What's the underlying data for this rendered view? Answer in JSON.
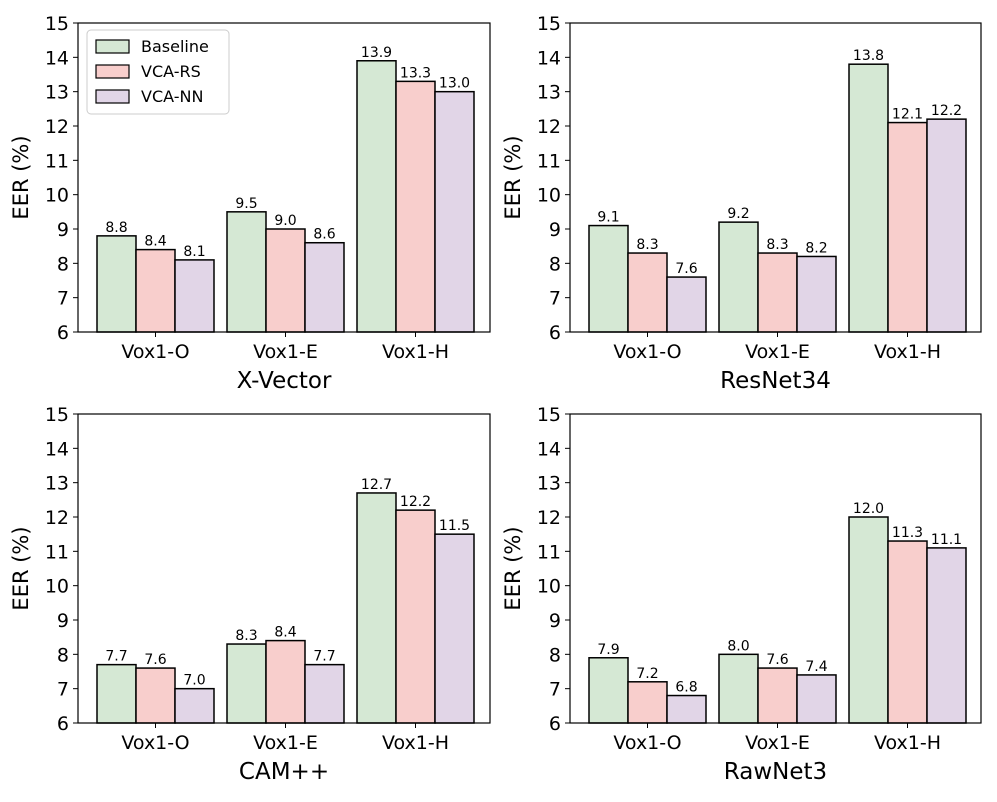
{
  "colors": {
    "Baseline": "#d5e8d4",
    "VCA-RS": "#f8cecc",
    "VCA-NN": "#e1d5e7",
    "edge": "#000000"
  },
  "chart_data": [
    {
      "type": "bar",
      "xlabel": "X-Vector",
      "ylabel": "EER (%)",
      "ylim": [
        6,
        15
      ],
      "yticks": [
        "6",
        "7",
        "8",
        "9",
        "10",
        "11",
        "12",
        "13",
        "14",
        "15"
      ],
      "categories": [
        "Vox1-O",
        "Vox1-E",
        "Vox1-H"
      ],
      "legend": {
        "show": true,
        "placement": "top-left"
      },
      "series": [
        {
          "name": "Baseline",
          "values": [
            8.8,
            9.5,
            13.9
          ],
          "labels": [
            "8.8",
            "9.5",
            "13.9"
          ]
        },
        {
          "name": "VCA-RS",
          "values": [
            8.4,
            9.0,
            13.3
          ],
          "labels": [
            "8.4",
            "9.0",
            "13.3"
          ]
        },
        {
          "name": "VCA-NN",
          "values": [
            8.1,
            8.6,
            13.0
          ],
          "labels": [
            "8.1",
            "8.6",
            "13.0"
          ]
        }
      ]
    },
    {
      "type": "bar",
      "xlabel": "ResNet34",
      "ylabel": "EER (%)",
      "ylim": [
        6,
        15
      ],
      "yticks": [
        "6",
        "7",
        "8",
        "9",
        "10",
        "11",
        "12",
        "13",
        "14",
        "15"
      ],
      "categories": [
        "Vox1-O",
        "Vox1-E",
        "Vox1-H"
      ],
      "legend": {
        "show": false
      },
      "series": [
        {
          "name": "Baseline",
          "values": [
            9.1,
            9.2,
            13.8
          ],
          "labels": [
            "9.1",
            "9.2",
            "13.8"
          ]
        },
        {
          "name": "VCA-RS",
          "values": [
            8.3,
            8.3,
            12.1
          ],
          "labels": [
            "8.3",
            "8.3",
            "12.1"
          ]
        },
        {
          "name": "VCA-NN",
          "values": [
            7.6,
            8.2,
            12.2
          ],
          "labels": [
            "7.6",
            "8.2",
            "12.2"
          ]
        }
      ]
    },
    {
      "type": "bar",
      "xlabel": "CAM++",
      "ylabel": "EER (%)",
      "ylim": [
        6,
        15
      ],
      "yticks": [
        "6",
        "7",
        "8",
        "9",
        "10",
        "11",
        "12",
        "13",
        "14",
        "15"
      ],
      "categories": [
        "Vox1-O",
        "Vox1-E",
        "Vox1-H"
      ],
      "legend": {
        "show": false
      },
      "series": [
        {
          "name": "Baseline",
          "values": [
            7.7,
            8.3,
            12.7
          ],
          "labels": [
            "7.7",
            "8.3",
            "12.7"
          ]
        },
        {
          "name": "VCA-RS",
          "values": [
            7.6,
            8.4,
            12.2
          ],
          "labels": [
            "7.6",
            "8.4",
            "12.2"
          ]
        },
        {
          "name": "VCA-NN",
          "values": [
            7.0,
            7.7,
            11.5
          ],
          "labels": [
            "7.0",
            "7.7",
            "11.5"
          ]
        }
      ]
    },
    {
      "type": "bar",
      "xlabel": "RawNet3",
      "ylabel": "EER (%)",
      "ylim": [
        6,
        15
      ],
      "yticks": [
        "6",
        "7",
        "8",
        "9",
        "10",
        "11",
        "12",
        "13",
        "14",
        "15"
      ],
      "categories": [
        "Vox1-O",
        "Vox1-E",
        "Vox1-H"
      ],
      "legend": {
        "show": false
      },
      "series": [
        {
          "name": "Baseline",
          "values": [
            7.9,
            8.0,
            12.0
          ],
          "labels": [
            "7.9",
            "8.0",
            "12.0"
          ]
        },
        {
          "name": "VCA-RS",
          "values": [
            7.2,
            7.6,
            11.3
          ],
          "labels": [
            "7.2",
            "7.6",
            "11.3"
          ]
        },
        {
          "name": "VCA-NN",
          "values": [
            6.8,
            7.4,
            11.1
          ],
          "labels": [
            "6.8",
            "7.4",
            "11.1"
          ]
        }
      ]
    }
  ]
}
